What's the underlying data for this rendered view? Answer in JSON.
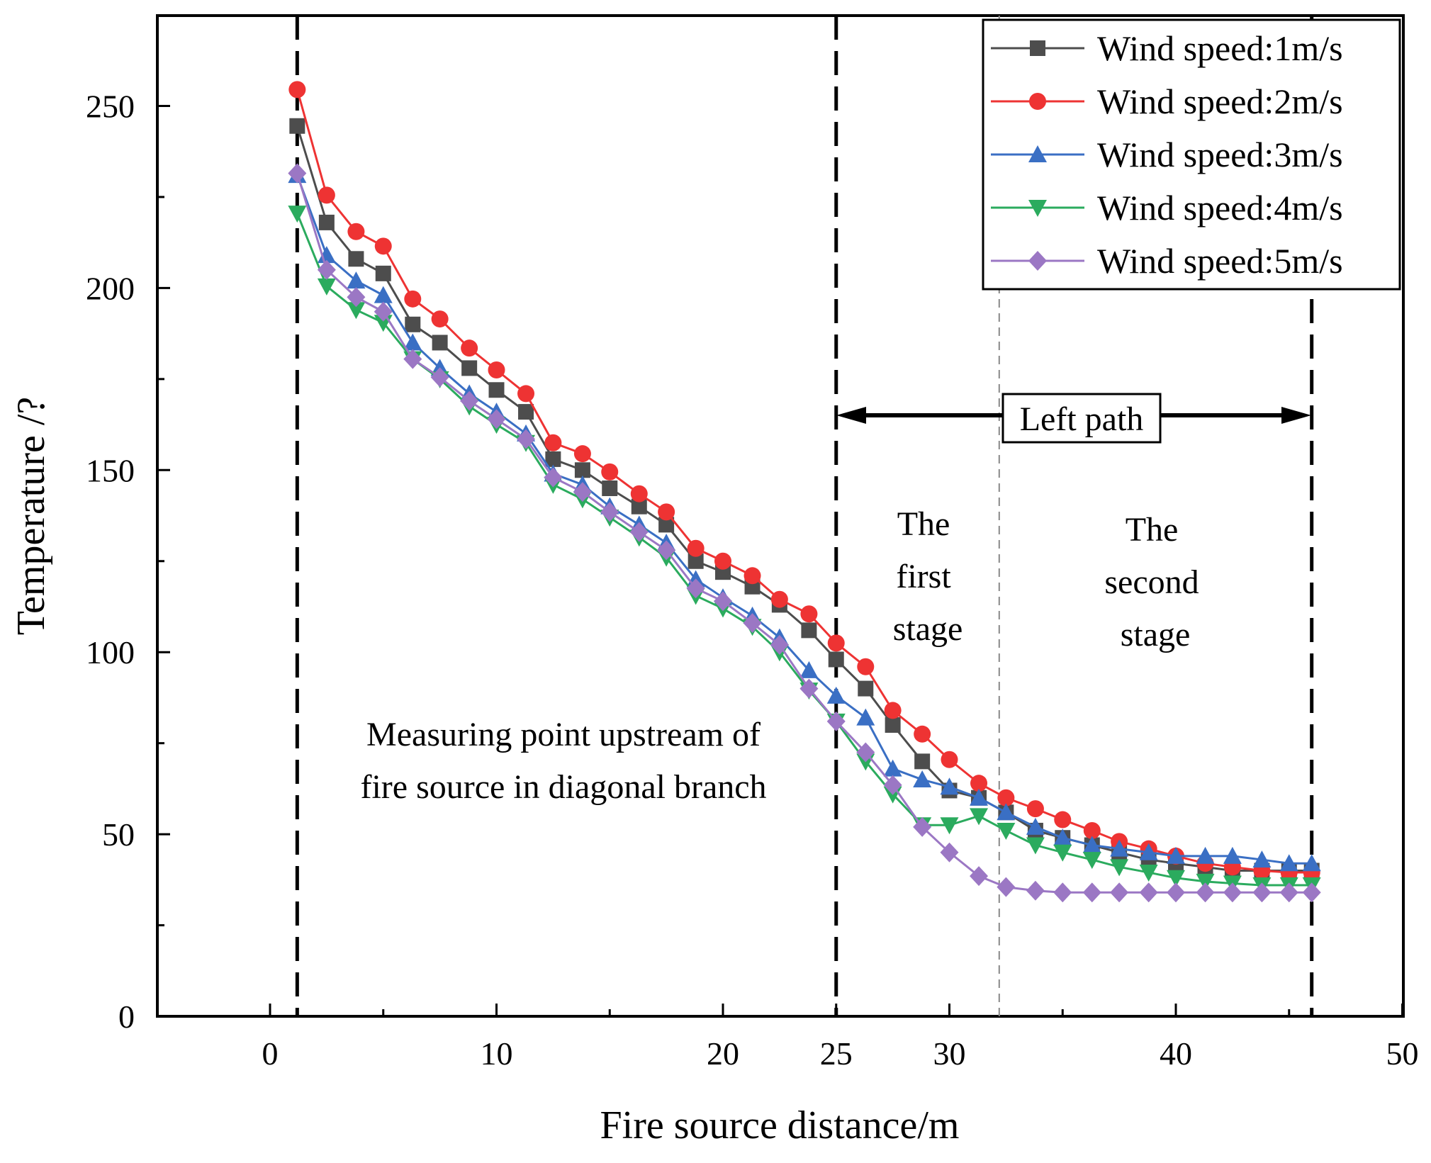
{
  "chart_data": {
    "type": "line",
    "xlabel": "Fire source distance/m",
    "ylabel": "Temperature /?",
    "xlim": [
      -5,
      50
    ],
    "ylim": [
      0,
      275
    ],
    "xticks": [
      0,
      10,
      20,
      25,
      30,
      40,
      50
    ],
    "yticks": [
      0,
      50,
      100,
      150,
      200,
      250
    ],
    "grid": false,
    "legend_position": "top-right",
    "x": [
      1.2,
      2.5,
      3.8,
      5.0,
      6.3,
      7.5,
      8.8,
      10.0,
      11.3,
      12.5,
      13.8,
      15.0,
      16.3,
      17.5,
      18.8,
      20.0,
      21.3,
      22.5,
      23.8,
      25.0,
      26.3,
      27.5,
      28.8,
      30.0,
      31.3,
      32.5,
      33.8,
      35.0,
      36.3,
      37.5,
      38.8,
      40.0,
      41.3,
      42.5,
      43.8,
      45.0,
      46.0
    ],
    "series": [
      {
        "name": "Wind speed:1m/s",
        "color": "#4d4d4d",
        "marker": "square",
        "values": [
          244.5,
          218,
          208,
          204,
          190,
          185,
          178,
          172,
          166,
          153,
          150,
          145,
          140,
          135,
          125,
          122,
          118,
          113,
          106,
          98,
          90,
          80,
          70,
          62,
          60,
          56,
          51,
          49,
          47,
          45,
          43,
          42,
          41,
          40,
          40,
          40,
          40
        ]
      },
      {
        "name": "Wind speed:2m/s",
        "color": "#ee3333",
        "marker": "circle",
        "values": [
          254.5,
          225.5,
          215.5,
          211.5,
          197,
          191.5,
          183.5,
          177.5,
          171,
          157.5,
          154.5,
          149.5,
          143.5,
          138.5,
          128.5,
          125,
          121,
          114.5,
          110.5,
          102.5,
          96,
          84,
          77.5,
          70.5,
          64,
          60,
          57,
          54,
          51,
          48,
          46,
          44,
          42,
          41,
          40,
          39.5,
          39.5
        ]
      },
      {
        "name": "Wind speed:3m/s",
        "color": "#3a6fc4",
        "marker": "triangle-up",
        "values": [
          231,
          209,
          202,
          198,
          185,
          178,
          171,
          166,
          160,
          149,
          146,
          140,
          135,
          130,
          120,
          115,
          110,
          104,
          95,
          88,
          82,
          68,
          65,
          63,
          60,
          56,
          52,
          49,
          47,
          46,
          45,
          44,
          44,
          44,
          43,
          42,
          42
        ]
      },
      {
        "name": "Wind speed:4m/s",
        "color": "#2bab5e",
        "marker": "triangle-down",
        "values": [
          220.5,
          200.5,
          194,
          190.5,
          180.5,
          175,
          167.5,
          162.5,
          157.5,
          146,
          142,
          137,
          131.5,
          126,
          115.5,
          112,
          107,
          100,
          89.5,
          81,
          70,
          61,
          52.5,
          52.5,
          55,
          51,
          47,
          45,
          43,
          41,
          39.5,
          38,
          37,
          36.5,
          36,
          36,
          36
        ]
      },
      {
        "name": "Wind speed:5m/s",
        "color": "#9b77c4",
        "marker": "diamond",
        "values": [
          231.5,
          205,
          197.5,
          193.5,
          180.5,
          175.5,
          169,
          164,
          158.5,
          148,
          144,
          138.5,
          133,
          128,
          117.5,
          114,
          108,
          102,
          90,
          81,
          72.5,
          63.5,
          52,
          45,
          38.5,
          35.5,
          34.5,
          34,
          34,
          34,
          34,
          34,
          34,
          34,
          34,
          34,
          34
        ]
      }
    ],
    "vlines": [
      {
        "x": 1.2,
        "style": "dashed-bold"
      },
      {
        "x": 25.0,
        "style": "dashed-bold"
      },
      {
        "x": 46.0,
        "style": "dashed-bold"
      },
      {
        "x": 32.2,
        "style": "dashed-thin"
      }
    ],
    "annotations": {
      "upstream_line1": "Measuring point upstream of",
      "upstream_line2": "fire source in diagonal branch",
      "left_path": "Left path",
      "first_stage": [
        "The",
        "first",
        "stage"
      ],
      "second_stage": [
        "The",
        "second",
        "stage"
      ]
    }
  }
}
